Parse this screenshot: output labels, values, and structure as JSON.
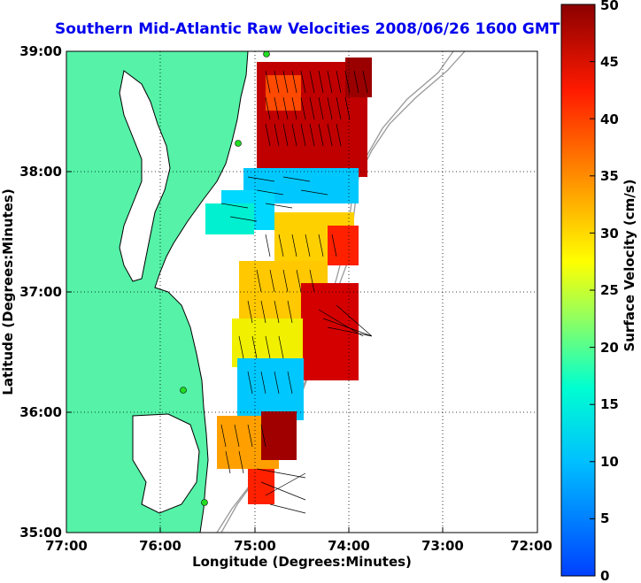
{
  "title": "Southern Mid-Atlantic Raw Velocities 2008/06/26 1600 GMT",
  "map": {
    "xlabel": "Longitude (Degrees:Minutes)",
    "ylabel": "Latitude (Degrees:Minutes)",
    "x_ticks": [
      "77:00",
      "76:00",
      "75:00",
      "74:00",
      "73:00",
      "72:00"
    ],
    "y_ticks": [
      "39:00",
      "38:00",
      "37:00",
      "36:00",
      "35:00"
    ],
    "land_color": "#55f2a8",
    "grid": "dotted"
  },
  "colorbar": {
    "label": "Surface Velocity (cm/s)",
    "ticks": [
      "50",
      "45",
      "40",
      "35",
      "30",
      "25",
      "20",
      "15",
      "10",
      "5",
      "0"
    ],
    "range": [
      0,
      50
    ],
    "colormap": "jet"
  }
}
